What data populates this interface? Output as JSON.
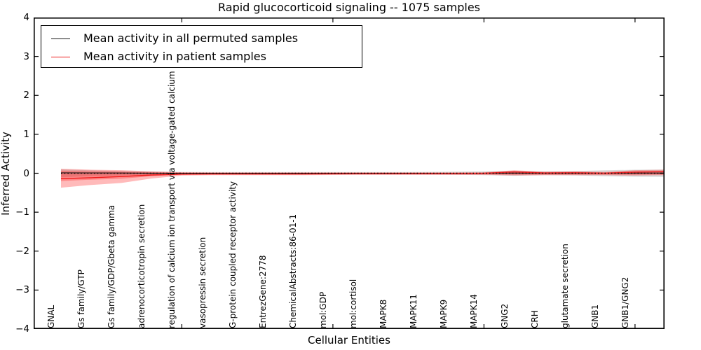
{
  "title": "Rapid glucocorticoid signaling -- 1075 samples",
  "axes": {
    "xlabel": "Cellular Entities",
    "ylabel": "Inferred Activity"
  },
  "legend": {
    "position": "upper left",
    "items": [
      {
        "label": "Mean activity in all permuted samples",
        "color": "#1a1a1a"
      },
      {
        "label": "Mean activity in patient samples",
        "color": "#ee1c1c"
      }
    ]
  },
  "chart_data": {
    "type": "line",
    "title": "Rapid glucocorticoid signaling -- 1075 samples",
    "xlabel": "Cellular Entities",
    "ylabel": "Inferred Activity",
    "ylim": [
      -4,
      4
    ],
    "grid": false,
    "yticks": {
      "values": [
        4,
        3,
        2,
        1,
        0,
        -1,
        -2,
        -3,
        -4
      ],
      "labels": [
        "4",
        "3",
        "2",
        "1",
        "0",
        "−1",
        "−2",
        "−3",
        "−4"
      ]
    },
    "xtick_mark_indices": [
      4,
      9,
      14,
      19
    ],
    "categories": [
      "GNAL",
      "Gs family/GTP",
      "Gs family/GDP/Gbeta gamma",
      "adrenocorticotropin secretion",
      "regulation of calcium ion transport via voltage-gated calcium channels",
      "vasopressin secretion",
      "G-protein coupled receptor activity",
      "EntrezGene:2778",
      "ChemicalAbstracts:86-01-1",
      "mol:GDP",
      "mol:cortisol",
      "MAPK8",
      "MAPK11",
      "MAPK9",
      "MAPK14",
      "GNG2",
      "CRH",
      "glutamate secretion",
      "GNB1",
      "GNB1/GNG2"
    ],
    "series": [
      {
        "name": "Mean activity in all permuted samples",
        "color": "#1a1a1a",
        "values": [
          0.01,
          0.008,
          0.005,
          0.002,
          0,
          0,
          0,
          0,
          0,
          0,
          0,
          0,
          0,
          0,
          0,
          0.004,
          0.001,
          0.002,
          0,
          0.004
        ],
        "tail": 0.005
      },
      {
        "name": "Mean activity in patient samples",
        "color": "#ee1c1c",
        "values": [
          -0.14,
          -0.115,
          -0.085,
          -0.045,
          -0.025,
          -0.02,
          -0.02,
          -0.02,
          -0.02,
          -0.015,
          -0.012,
          -0.012,
          -0.01,
          -0.008,
          -0.002,
          0.035,
          0.008,
          0.012,
          0.002,
          0.028
        ],
        "tail": 0.042
      }
    ],
    "bands": [
      {
        "name": "permuted-samples-std-band",
        "color": "rgba(0,0,0,0.14)",
        "upper": [
          0.1,
          0.075,
          0.055,
          0.04,
          0.035,
          0.03,
          0.03,
          0.03,
          0.03,
          0.03,
          0.03,
          0.03,
          0.035,
          0.04,
          0.05,
          0.065,
          0.05,
          0.055,
          0.075,
          0.09
        ],
        "lower": [
          -0.1,
          -0.075,
          -0.055,
          -0.04,
          -0.035,
          -0.03,
          -0.03,
          -0.03,
          -0.03,
          -0.03,
          -0.03,
          -0.03,
          -0.035,
          -0.04,
          -0.05,
          -0.065,
          -0.05,
          -0.055,
          -0.075,
          -0.09
        ],
        "tail_upper": 0.095,
        "tail_lower": -0.095
      },
      {
        "name": "patient-samples-outer-band",
        "color": "rgba(255,0,0,0.27)",
        "upper": [
          0.115,
          0.09,
          0.08,
          0.05,
          0.025,
          0.02,
          0.02,
          0.02,
          0.02,
          0.02,
          0.02,
          0.02,
          0.02,
          0.02,
          0.025,
          0.075,
          0.04,
          0.05,
          0.035,
          0.08
        ],
        "lower": [
          -0.37,
          -0.3,
          -0.25,
          -0.135,
          -0.06,
          -0.05,
          -0.05,
          -0.05,
          -0.05,
          -0.045,
          -0.04,
          -0.04,
          -0.04,
          -0.04,
          -0.04,
          -0.055,
          -0.05,
          -0.05,
          -0.05,
          -0.06
        ],
        "tail_upper": 0.09,
        "tail_lower": -0.05
      },
      {
        "name": "patient-samples-inner-band",
        "color": "rgba(255,0,0,0.27)",
        "upper": [
          0.055,
          0.045,
          0.04,
          0.025,
          0.012,
          0.01,
          0.01,
          0.01,
          0.01,
          0.01,
          0.01,
          0.01,
          0.01,
          0.01,
          0.012,
          0.05,
          0.02,
          0.03,
          0.018,
          0.05
        ],
        "lower": [
          -0.2,
          -0.165,
          -0.14,
          -0.075,
          -0.035,
          -0.03,
          -0.03,
          -0.03,
          -0.03,
          -0.028,
          -0.025,
          -0.025,
          -0.025,
          -0.025,
          -0.025,
          -0.035,
          -0.03,
          -0.03,
          -0.03,
          -0.035
        ],
        "tail_upper": 0.055,
        "tail_lower": -0.03
      }
    ],
    "zero_line": {
      "value": 0,
      "style": "dotted",
      "color": "#000000"
    }
  }
}
